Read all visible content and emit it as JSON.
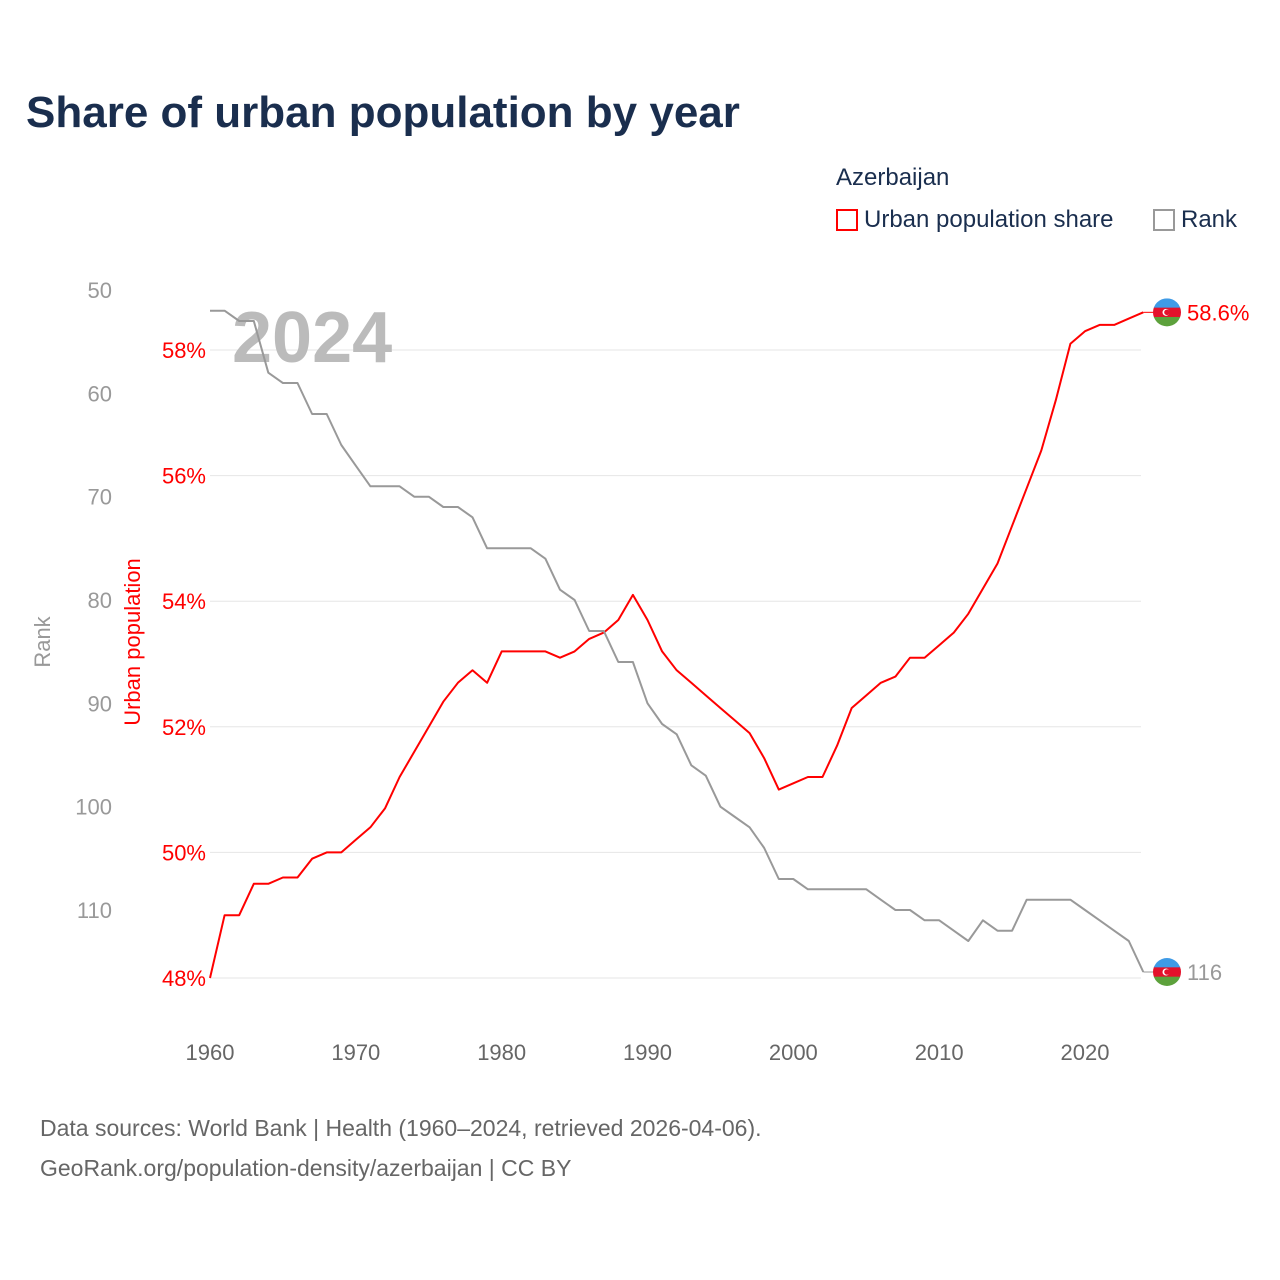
{
  "chart_data": {
    "type": "line",
    "title": "Share of urban population by year",
    "legend_title": "Azerbaijan",
    "legend_placement": "top-right",
    "watermark_year": "2024",
    "xlabel": "",
    "x_ticks": [
      "1960",
      "1970",
      "1980",
      "1990",
      "2000",
      "2010",
      "2020"
    ],
    "xlim": [
      1960,
      2024
    ],
    "y_left_outer": {
      "label": "Rank",
      "ticks": [
        "50",
        "60",
        "70",
        "80",
        "90",
        "100",
        "110"
      ],
      "lim": [
        50,
        116
      ],
      "color": "#999999"
    },
    "y_left_inner": {
      "label": "Urban population",
      "ticks": [
        "48%",
        "50%",
        "52%",
        "54%",
        "56%",
        "58%"
      ],
      "lim": [
        48,
        58.6
      ],
      "color": "#ff0000"
    },
    "x": [
      1960,
      1961,
      1962,
      1963,
      1964,
      1965,
      1966,
      1967,
      1968,
      1969,
      1970,
      1971,
      1972,
      1973,
      1974,
      1975,
      1976,
      1977,
      1978,
      1979,
      1980,
      1981,
      1982,
      1983,
      1984,
      1985,
      1986,
      1987,
      1988,
      1989,
      1990,
      1991,
      1992,
      1993,
      1994,
      1995,
      1996,
      1997,
      1998,
      1999,
      2000,
      2001,
      2002,
      2003,
      2004,
      2005,
      2006,
      2007,
      2008,
      2009,
      2010,
      2011,
      2012,
      2013,
      2014,
      2015,
      2016,
      2017,
      2018,
      2019,
      2020,
      2021,
      2022,
      2023,
      2024
    ],
    "series": [
      {
        "name": "Urban population share",
        "color": "#ff0000",
        "end_label": "58.6%",
        "values": [
          48.0,
          49.0,
          49.0,
          49.5,
          49.5,
          49.6,
          49.6,
          49.9,
          50.0,
          50.0,
          50.2,
          50.4,
          50.7,
          51.2,
          51.6,
          52.0,
          52.4,
          52.7,
          52.9,
          52.7,
          53.2,
          53.2,
          53.2,
          53.2,
          53.1,
          53.2,
          53.4,
          53.5,
          53.7,
          54.1,
          53.7,
          53.2,
          52.9,
          52.7,
          52.5,
          52.3,
          52.1,
          51.9,
          51.5,
          51.0,
          51.1,
          51.2,
          51.2,
          51.7,
          52.3,
          52.5,
          52.7,
          52.8,
          53.1,
          53.1,
          53.3,
          53.5,
          53.8,
          54.2,
          54.6,
          55.2,
          55.8,
          56.4,
          57.2,
          58.1,
          58.3,
          58.4,
          58.4,
          58.5,
          58.6
        ]
      },
      {
        "name": "Rank",
        "color": "#999999",
        "end_label": "116",
        "values": [
          52,
          52,
          53,
          53,
          58,
          59,
          59,
          62,
          62,
          65,
          67,
          69,
          69,
          69,
          70,
          70,
          71,
          71,
          72,
          75,
          75,
          75,
          75,
          76,
          79,
          80,
          83,
          83,
          86,
          86,
          90,
          92,
          93,
          96,
          97,
          100,
          101,
          102,
          104,
          107,
          107,
          108,
          108,
          108,
          108,
          108,
          109,
          110,
          110,
          111,
          111,
          112,
          113,
          111,
          112,
          112,
          109,
          109,
          109,
          109,
          110,
          111,
          112,
          113,
          116
        ]
      }
    ],
    "flag_colors": [
      "#3f9be6",
      "#e4112b",
      "#5da13c"
    ],
    "source_lines": [
      "Data sources: World Bank | Health (1960–2024, retrieved 2026-04-06).",
      "GeoRank.org/population-density/azerbaijan | CC BY"
    ]
  }
}
